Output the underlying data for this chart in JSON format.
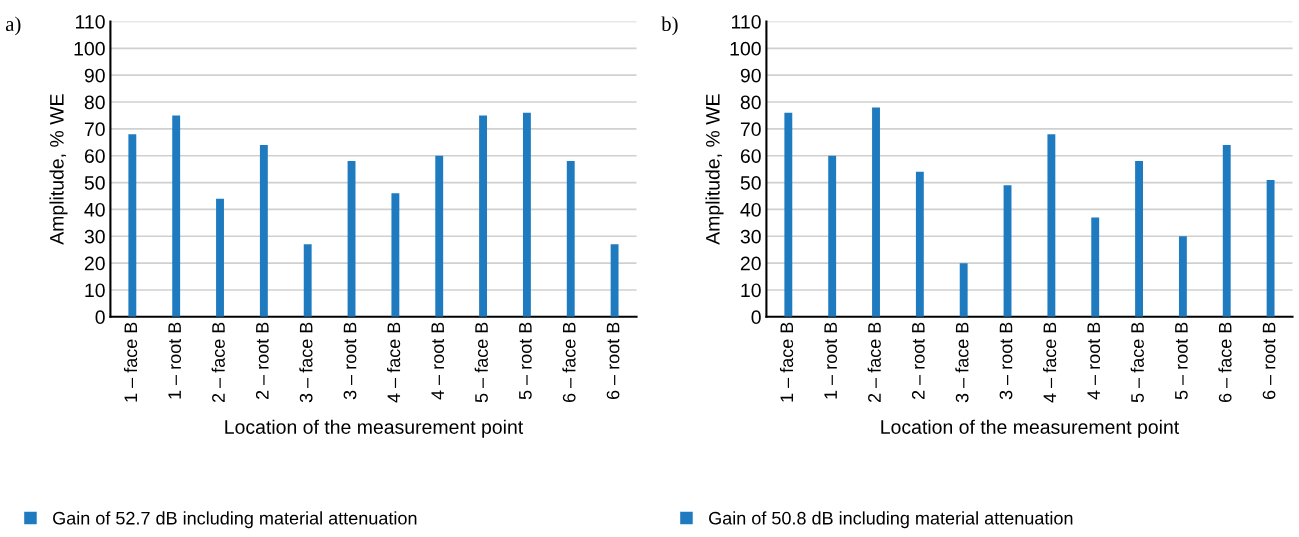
{
  "chart_data": [
    {
      "type": "bar",
      "title": "a)",
      "xlabel": "Location of the measurement point",
      "ylabel": "Amplitude, % WE",
      "categories": [
        "1 – face B",
        "1 – root B",
        "2 – face B",
        "2 – root B",
        "3 – face B",
        "3 – root B",
        "4 – face B",
        "4 – root B",
        "5 – face B",
        "5 – root B",
        "6 – face B",
        "6 – root B"
      ],
      "series": [
        {
          "name": "Gain of 52.7 dB including material attenuation",
          "color": "#1f7bc0",
          "values": [
            68,
            75,
            44,
            64,
            27,
            58,
            46,
            60,
            75,
            76,
            58,
            27
          ]
        }
      ],
      "ylim": [
        0,
        110
      ],
      "yticks": [
        0,
        10,
        20,
        30,
        40,
        50,
        60,
        70,
        80,
        90,
        100,
        110
      ],
      "grid": "y",
      "legend": "bottom"
    },
    {
      "type": "bar",
      "title": "b)",
      "xlabel": "Location of the measurement point",
      "ylabel": "Amplitude, % WE",
      "categories": [
        "1 – face B",
        "1 – root B",
        "2 – face B",
        "2 – root B",
        "3 – face B",
        "3 – root B",
        "4 – face B",
        "4 – root B",
        "5 – face B",
        "5 – root B",
        "6 – face B",
        "6 – root B"
      ],
      "series": [
        {
          "name": "Gain of 50.8 dB including material attenuation",
          "color": "#1f7bc0",
          "values": [
            76,
            60,
            78,
            54,
            20,
            49,
            68,
            37,
            58,
            30,
            64,
            51
          ]
        }
      ],
      "ylim": [
        0,
        110
      ],
      "yticks": [
        0,
        10,
        20,
        30,
        40,
        50,
        60,
        70,
        80,
        90,
        100,
        110
      ],
      "grid": "y",
      "legend": "bottom"
    }
  ]
}
